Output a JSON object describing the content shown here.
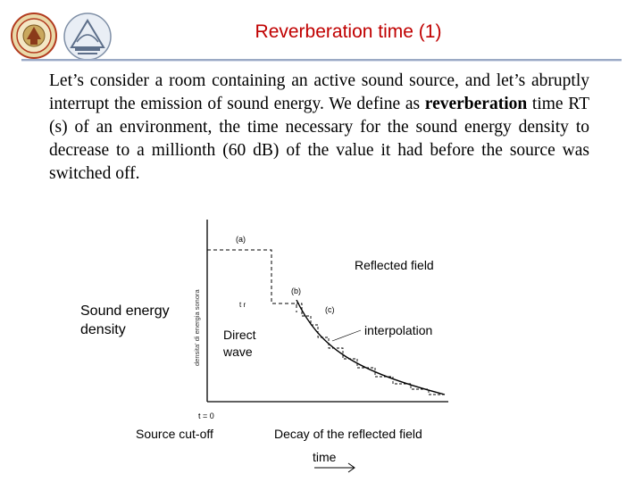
{
  "header": {
    "title": "Reverberation time (1)"
  },
  "paragraph": {
    "part1": "Let’s consider a room containing an active sound source, and let’s abruptly interrupt the emission of sound energy. We define as ",
    "bold": "reverberation",
    "part2": " time RT (s) of an environment, the time necessary for the sound energy density to decrease to a millionth (60 dB) of the value it had before the source was switched off."
  },
  "figure": {
    "y_axis_label": "Sound energy density",
    "reflected_field": "Reflected field",
    "direct_wave": "Direct wave",
    "interpolation": "interpolation",
    "source_cutoff": "Source cut-off",
    "decay": "Decay of the reflected field",
    "time_label": "time",
    "marker_a": "(a)",
    "marker_b": "(b)",
    "marker_c": "(c)",
    "marker_tr": "t r",
    "marker_t0": "t = 0",
    "inner_ylabel": "densita' di energia sonora"
  },
  "colors": {
    "title": "#c00000",
    "rule": "#9aa9c4"
  },
  "icons": [
    "university-seal-logo",
    "audio-lab-logo"
  ]
}
